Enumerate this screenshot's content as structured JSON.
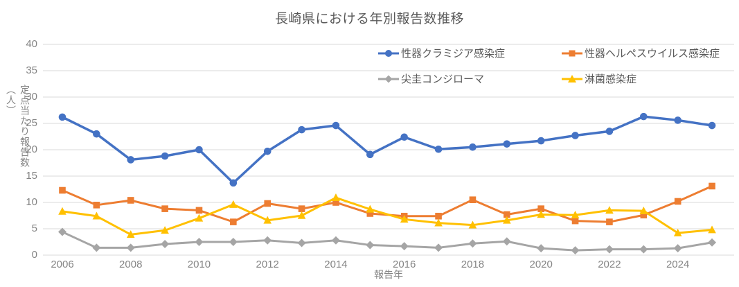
{
  "chart": {
    "title": "長崎県における年別報告数推移",
    "x_axis_label": "報告年",
    "y_axis_label": "定点当たり報告数（人）"
  },
  "chart_data": {
    "type": "line",
    "title": "長崎県における年別報告数推移",
    "xlabel": "報告年",
    "ylabel": "定点当たり報告数（人）",
    "x": [
      2006,
      2007,
      2008,
      2009,
      2010,
      2011,
      2012,
      2013,
      2014,
      2015,
      2016,
      2017,
      2018,
      2019,
      2020,
      2021,
      2022,
      2023,
      2024,
      2025
    ],
    "x_tick_labels": [
      "2006",
      "2008",
      "2010",
      "2012",
      "2014",
      "2016",
      "2018",
      "2020",
      "2022",
      "2024"
    ],
    "y_ticks": [
      0,
      5,
      10,
      15,
      20,
      25,
      30,
      35,
      40
    ],
    "ylim": [
      0,
      40
    ],
    "grid": true,
    "legend_position": "top-center-right, 2 rows x 2 columns",
    "series": [
      {
        "name": "性器クラミジア感染症",
        "color": "#4472C4",
        "marker": "circle",
        "values": [
          26.2,
          23.0,
          18.1,
          18.8,
          20.0,
          13.7,
          19.7,
          23.8,
          24.6,
          19.1,
          22.4,
          20.1,
          20.5,
          21.1,
          21.7,
          22.7,
          23.5,
          26.3,
          25.6,
          24.6
        ]
      },
      {
        "name": "性器ヘルペスウイルス感染症",
        "color": "#ED7D31",
        "marker": "square",
        "values": [
          12.3,
          9.5,
          10.4,
          8.8,
          8.5,
          6.3,
          9.8,
          8.8,
          10.0,
          7.9,
          7.4,
          7.4,
          10.5,
          7.7,
          8.8,
          6.5,
          6.3,
          7.6,
          10.2,
          13.1
        ]
      },
      {
        "name": "尖圭コンジローマ",
        "color": "#A5A5A5",
        "marker": "diamond",
        "values": [
          4.4,
          1.4,
          1.4,
          2.1,
          2.5,
          2.5,
          2.8,
          2.3,
          2.8,
          1.9,
          1.7,
          1.4,
          2.2,
          2.6,
          1.3,
          0.9,
          1.1,
          1.1,
          1.3,
          2.4
        ]
      },
      {
        "name": "淋菌感染症",
        "color": "#FFC000",
        "marker": "triangle",
        "values": [
          8.3,
          7.4,
          3.9,
          4.7,
          7.0,
          9.6,
          6.6,
          7.5,
          10.9,
          8.7,
          6.8,
          6.1,
          5.7,
          6.6,
          7.7,
          7.6,
          8.5,
          8.4,
          4.2,
          4.8
        ]
      }
    ],
    "colors": {
      "gridline": "#D9D9D9",
      "tick_label": "#848484",
      "title": "#595959"
    }
  }
}
